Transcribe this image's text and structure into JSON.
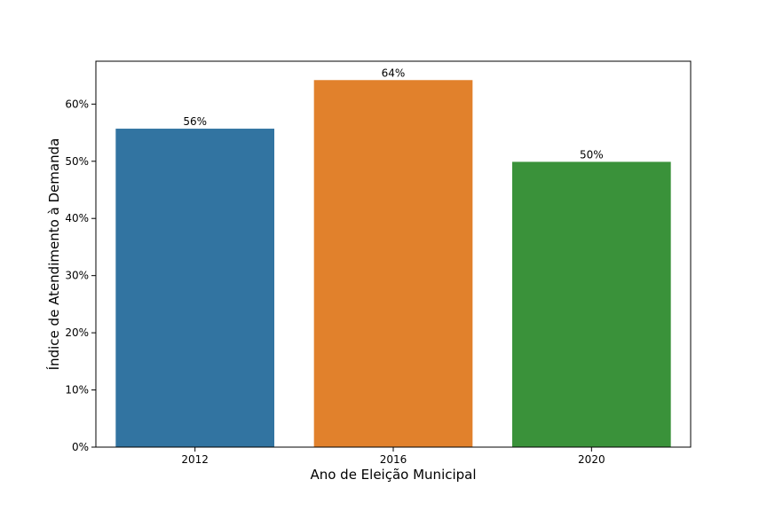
{
  "chart_data": {
    "type": "bar",
    "title": "",
    "xlabel": "Ano de Eleição Municipal",
    "ylabel": "Índice de Atendimento à Demanda",
    "categories": [
      "2012",
      "2016",
      "2020"
    ],
    "values": [
      55.7,
      64.2,
      49.9
    ],
    "bar_labels": [
      "56%",
      "64%",
      "50%"
    ],
    "colors": [
      "#3274a1",
      "#e1812c",
      "#3a923a"
    ],
    "ylim": [
      0,
      67.5
    ],
    "yticks": [
      0,
      10,
      20,
      30,
      40,
      50,
      60
    ],
    "ytick_labels": [
      "0%",
      "10%",
      "20%",
      "30%",
      "40%",
      "50%",
      "60%"
    ],
    "grid": false,
    "legend": "none"
  }
}
